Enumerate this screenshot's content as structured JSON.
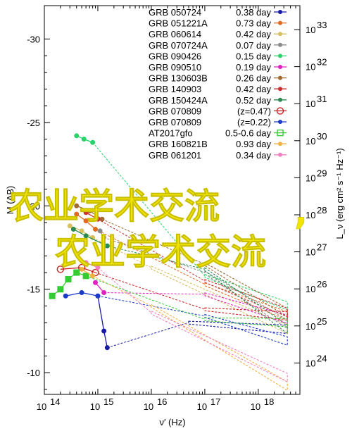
{
  "chart_data": {
    "type": "line",
    "xlabel": "ν′ (Hz)",
    "ylabel_left": "M (AB)",
    "ylabel_right": "L_ν (erg cm² s⁻¹ Hz⁻¹)",
    "xscale": "log",
    "xlim": [
      100000000000000.0,
      6e+18
    ],
    "ylim_left": [
      -8.7,
      -32.0
    ],
    "x_ticks": [
      {
        "value": 100000000000000.0,
        "label": "10",
        "exp": "14"
      },
      {
        "value": 1000000000000000.0,
        "label": "10",
        "exp": "15"
      },
      {
        "value": 1e+16,
        "label": "10",
        "exp": "16"
      },
      {
        "value": 1e+17,
        "label": "10",
        "exp": "17"
      },
      {
        "value": 1e+18,
        "label": "10",
        "exp": "18"
      }
    ],
    "y_ticks_left": [
      {
        "value": -30,
        "label": "-30"
      },
      {
        "value": -25,
        "label": "-25"
      },
      {
        "value": -20,
        "label": "-20"
      },
      {
        "value": -15,
        "label": "-15"
      },
      {
        "value": -10,
        "label": "-10"
      }
    ],
    "y_ticks_right": [
      {
        "exp": 33,
        "label": "10",
        "sup": "33"
      },
      {
        "exp": 32,
        "label": "10",
        "sup": "32"
      },
      {
        "exp": 31,
        "label": "10",
        "sup": "31"
      },
      {
        "exp": 30,
        "label": "10",
        "sup": "30"
      },
      {
        "exp": 29,
        "label": "10",
        "sup": "29"
      },
      {
        "exp": 28,
        "label": "10",
        "sup": "28"
      },
      {
        "exp": 27,
        "label": "10",
        "sup": "27"
      },
      {
        "exp": 26,
        "label": "10",
        "sup": "26"
      },
      {
        "exp": 25,
        "label": "10",
        "sup": "25"
      },
      {
        "exp": 24,
        "label": "10",
        "sup": "24"
      }
    ],
    "legend_position": "top-right",
    "series": [
      {
        "name": "GRB 050724",
        "z_label": "0.38 day",
        "color": "#1a1aa8",
        "marker": "dot",
        "points": [
          [
            1000000000000000.0,
            -14.6
          ],
          [
            1300000000000000.0,
            -12.5
          ],
          [
            1500000000000000.0,
            -11.5
          ]
        ],
        "xray": [
          [
            5e+16,
            -13.0
          ],
          [
            3.5e+18,
            -12.6
          ]
        ]
      },
      {
        "name": "GRB 051221A",
        "z_label": "0.73 day",
        "color": "#e06a20",
        "marker": "dot",
        "points": [
          [
            400000000000000.0,
            -19.5
          ],
          [
            600000000000000.0,
            -19.1
          ],
          [
            900000000000000.0,
            -18.6
          ]
        ],
        "xray": [
          [
            1e+17,
            -15.3
          ],
          [
            3.5e+18,
            -13.4
          ]
        ]
      },
      {
        "name": "GRB 060614",
        "z_label": "0.42 day",
        "color": "#d6c060",
        "marker": "dot",
        "points": [
          [
            300000000000000.0,
            -18.8
          ],
          [
            500000000000000.0,
            -18.5
          ],
          [
            800000000000000.0,
            -18.1
          ]
        ],
        "xray": [
          [
            1e+16,
            -16.3
          ],
          [
            3.5e+18,
            -12.6
          ]
        ]
      },
      {
        "name": "GRB 070724A",
        "z_label": "0.07 day",
        "color": "#8a8a8a",
        "marker": "dot",
        "points": [
          [
            1100000000000000.0,
            -18.5
          ],
          [
            1300000000000000.0,
            -18.1
          ]
        ],
        "xray": [
          [
            1e+17,
            -16.0
          ],
          [
            3.5e+18,
            -12.9
          ]
        ]
      },
      {
        "name": "GRB 090426",
        "z_label": "0.15 day",
        "color": "#2ad36a",
        "marker": "dot",
        "points": [
          [
            400000000000000.0,
            -24.2
          ],
          [
            550000000000000.0,
            -24.0
          ],
          [
            800000000000000.0,
            -23.8
          ]
        ],
        "xray": [
          [
            1e+17,
            -15.8
          ],
          [
            3.5e+18,
            -14.0
          ]
        ]
      },
      {
        "name": "GRB 090510",
        "z_label": "0.19 day",
        "color": "#e020c0",
        "marker": "dot",
        "points": [
          [
            900000000000000.0,
            -15.4
          ],
          [
            1300000000000000.0,
            -14.8
          ]
        ],
        "xray": [
          [
            1e+17,
            -14.7
          ],
          [
            3.5e+18,
            -13.2
          ]
        ]
      },
      {
        "name": "GRB 130603B",
        "z_label": "0.26 day",
        "color": "#a06a30",
        "marker": "dot",
        "points": [
          [
            400000000000000.0,
            -20.0
          ],
          [
            700000000000000.0,
            -19.7
          ],
          [
            1200000000000000.0,
            -19.2
          ]
        ],
        "xray": [
          [
            1e+17,
            -16.5
          ],
          [
            3.5e+18,
            -13.6
          ]
        ]
      },
      {
        "name": "GRB 140903",
        "z_label": "0.42 day",
        "color": "#cc3030",
        "marker": "dot",
        "points": [
          [
            600000000000000.0,
            -19.6
          ],
          [
            1000000000000000.0,
            -19.2
          ]
        ],
        "xray": [
          [
            1e+17,
            -15.5
          ],
          [
            3.5e+18,
            -13.6
          ]
        ]
      },
      {
        "name": "GRB 150424A",
        "z_label": "0.52 day",
        "color": "#2a8a50",
        "marker": "dot",
        "points": [
          [
            350000000000000.0,
            -18.6
          ],
          [
            600000000000000.0,
            -18.2
          ],
          [
            1500000000000000.0,
            -17.6
          ]
        ],
        "xray": [
          [
            1e+17,
            -16.2
          ],
          [
            3.5e+18,
            -12.6
          ]
        ]
      },
      {
        "name": "GRB 070809",
        "z_label": "(z=0.47)",
        "color": "#cc2020",
        "marker": "open-circle",
        "points": [
          [
            200000000000000.0,
            -16.2
          ],
          [
            500000000000000.0,
            -16.3
          ],
          [
            900000000000000.0,
            -16.0
          ]
        ],
        "xray": [
          [
            1e+17,
            -13.8
          ],
          [
            3.5e+18,
            -13.4
          ]
        ]
      },
      {
        "name": "GRB 070809",
        "z_label": "(z=0.22)",
        "color": "#1a3ac8",
        "marker": "dot",
        "points": [
          [
            250000000000000.0,
            -14.6
          ],
          [
            500000000000000.0,
            -14.8
          ],
          [
            1000000000000000.0,
            -14.6
          ]
        ],
        "xray": [
          [
            1e+17,
            -13.4
          ],
          [
            3.5e+18,
            -11.9
          ]
        ]
      },
      {
        "name": "AT2017gfo",
        "z_label": "0.5-0.6 day",
        "color": "#33cc33",
        "marker": "open-square",
        "points": [
          [
            140000000000000.0,
            -14.6
          ],
          [
            200000000000000.0,
            -15.0
          ],
          [
            280000000000000.0,
            -15.6
          ],
          [
            400000000000000.0,
            -16.0
          ],
          [
            600000000000000.0,
            -15.8
          ]
        ],
        "xray": [
          [
            1e+17,
            -13.2
          ],
          [
            3.5e+18,
            -13.0
          ]
        ]
      },
      {
        "name": "GRB 160821B",
        "z_label": "0.93 day",
        "color": "#f0b040",
        "marker": "dot",
        "points": [
          [
            500000000000000.0,
            -16.2
          ],
          [
            800000000000000.0,
            -15.8
          ]
        ],
        "xray": [
          [
            1e+16,
            -14.0
          ],
          [
            3.5e+18,
            -9.2
          ]
        ]
      },
      {
        "name": "GRB 061201",
        "z_label": "0.34 day",
        "color": "#f080c0",
        "marker": "dot",
        "points": [
          [
            600000000000000.0,
            -16.6
          ],
          [
            1000000000000000.0,
            -16.3
          ]
        ],
        "xray": [
          [
            1e+16,
            -13.6
          ],
          [
            3.5e+18,
            -9.7
          ]
        ]
      }
    ]
  },
  "overlay": {
    "line1": "农业学术交流",
    "line1_comma": ",",
    "line2": "农业学术交流"
  }
}
